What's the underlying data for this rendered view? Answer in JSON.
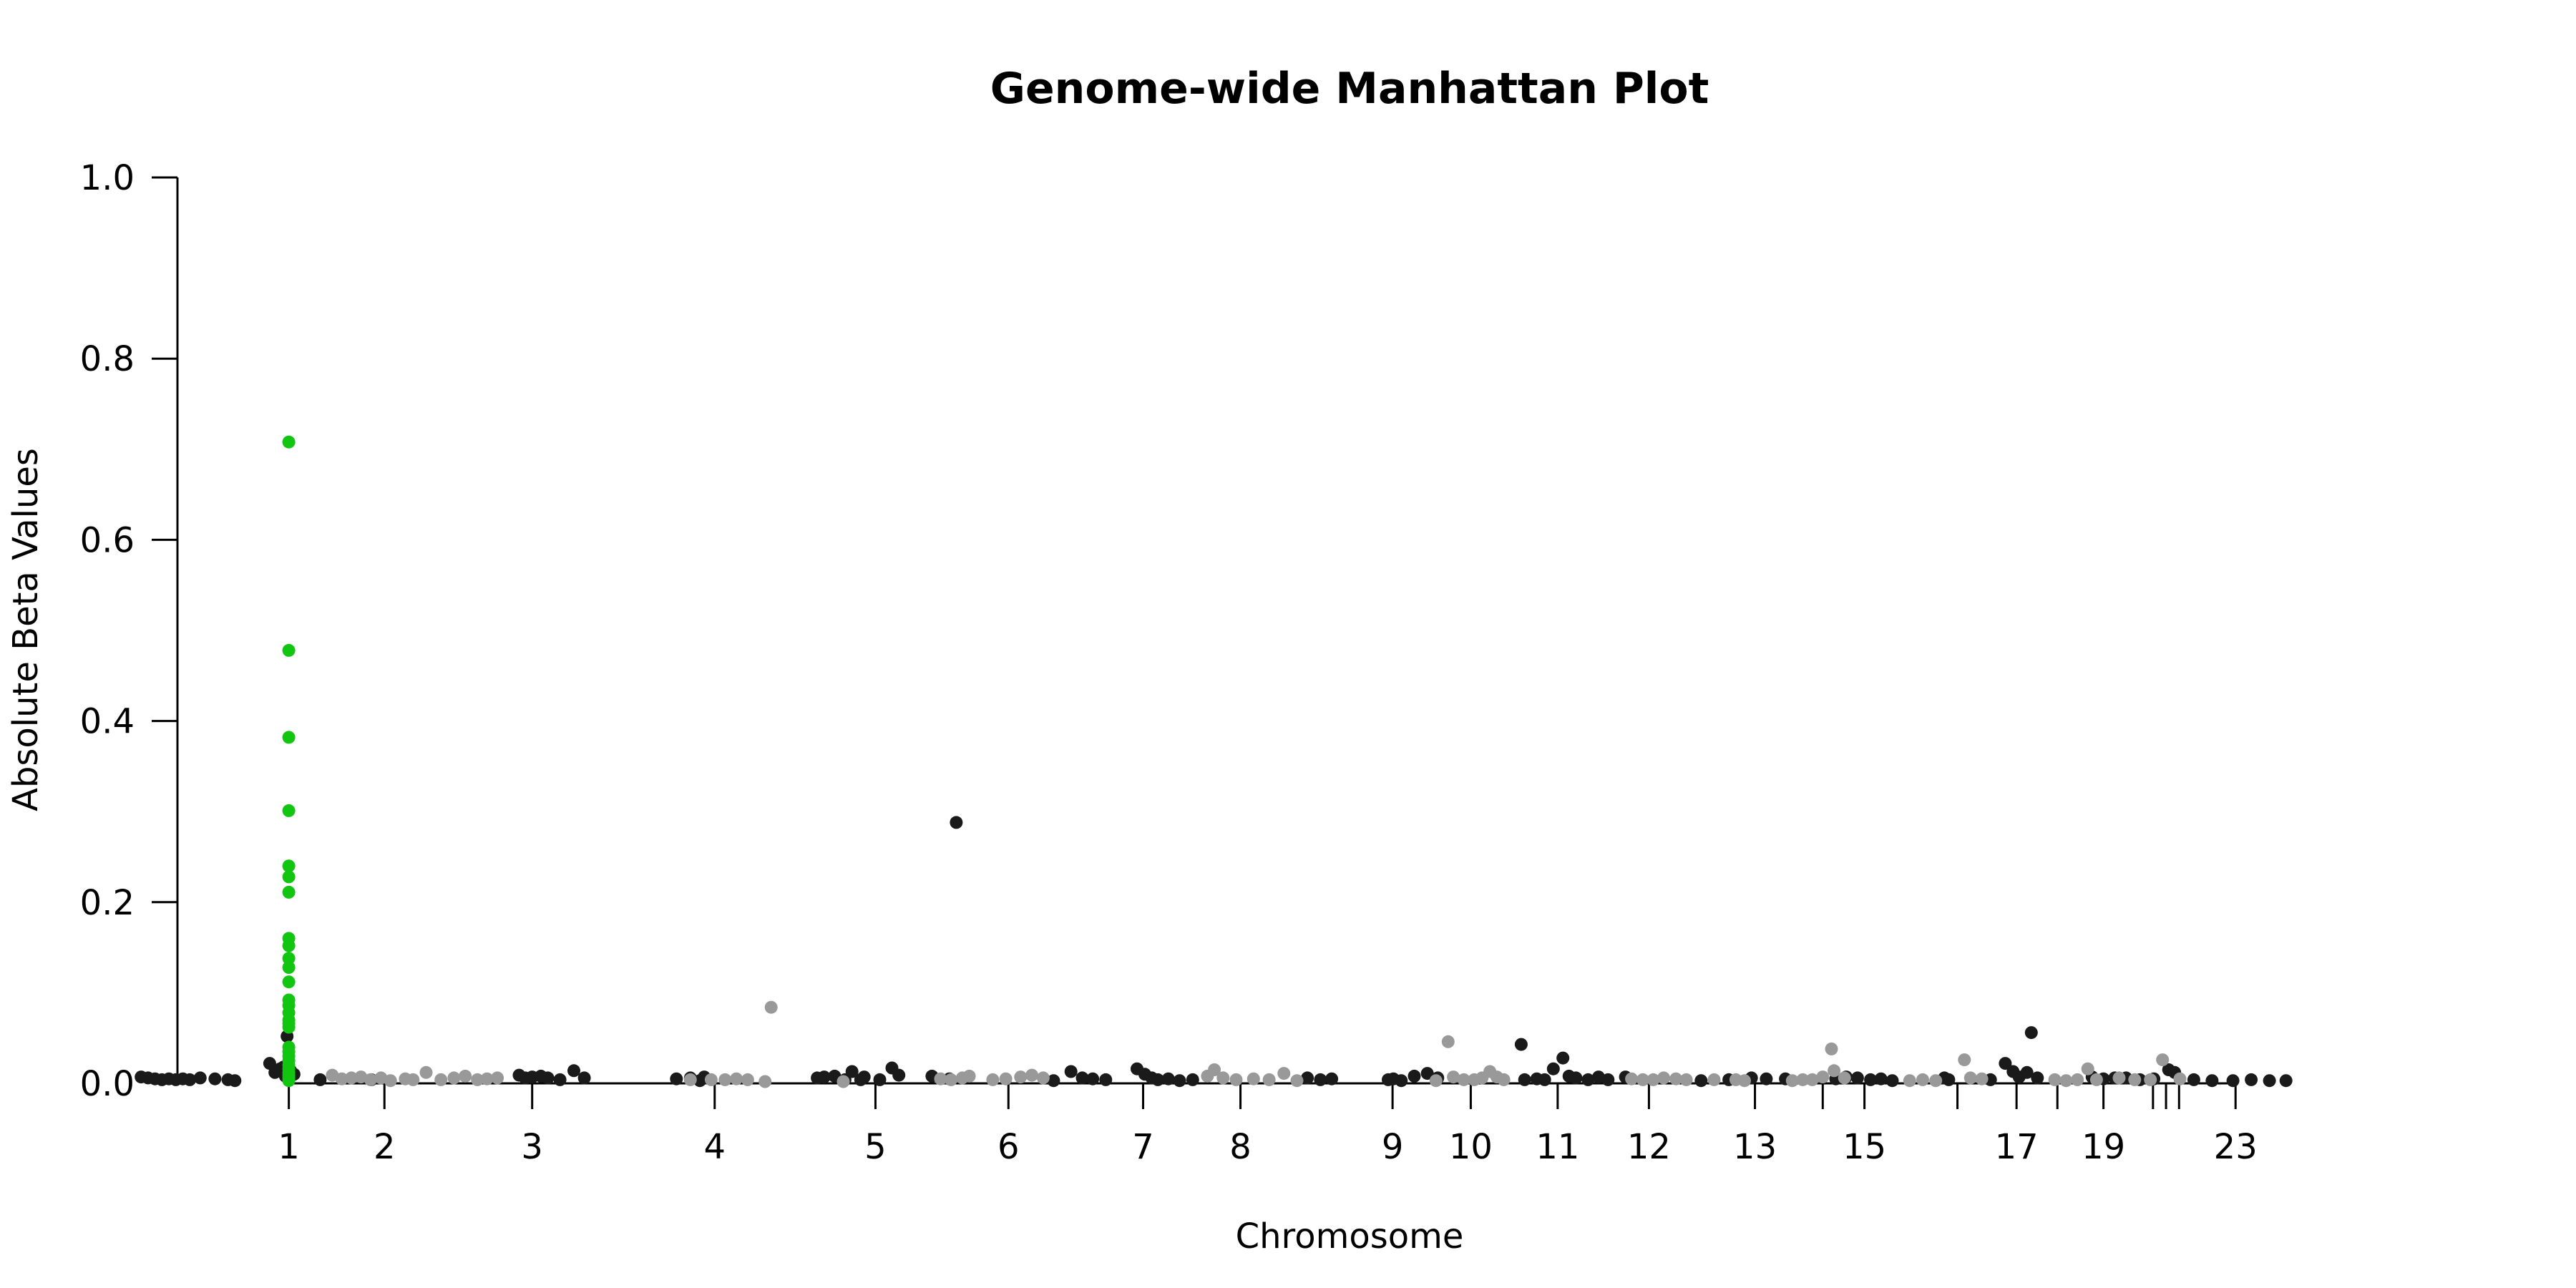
{
  "chart_data": {
    "type": "scatter",
    "title": "Genome-wide Manhattan Plot",
    "xlabel": "Chromosome",
    "ylabel": "Absolute Beta Values",
    "ylim": [
      0,
      1.0
    ],
    "yticks": [
      0.0,
      0.2,
      0.4,
      0.6,
      0.8,
      1.0
    ],
    "ytick_labels": [
      "0.0",
      "0.2",
      "0.4",
      "0.6",
      "0.8",
      "1.0"
    ],
    "xlim": [
      0,
      2750
    ],
    "grid": false,
    "legend": "none",
    "colors": {
      "dark": "#1a1a1a",
      "light": "#999999",
      "highlight": "#11c511"
    },
    "chromosome_ticks": [
      {
        "label": "1",
        "pos": 250
      },
      {
        "label": "2",
        "pos": 360
      },
      {
        "label": "3",
        "pos": 530
      },
      {
        "label": "4",
        "pos": 740
      },
      {
        "label": "5",
        "pos": 925
      },
      {
        "label": "6",
        "pos": 1078
      },
      {
        "label": "7",
        "pos": 1233
      },
      {
        "label": "8",
        "pos": 1345
      },
      {
        "label": "9",
        "pos": 1520
      },
      {
        "label": "10",
        "pos": 1610
      },
      {
        "label": "11",
        "pos": 1710
      },
      {
        "label": "12",
        "pos": 1815
      },
      {
        "label": "13",
        "pos": 1937
      },
      {
        "label": "",
        "pos": 2015
      },
      {
        "label": "15",
        "pos": 2063
      },
      {
        "label": "",
        "pos": 2170
      },
      {
        "label": "17",
        "pos": 2238
      },
      {
        "label": "",
        "pos": 2285
      },
      {
        "label": "19",
        "pos": 2338
      },
      {
        "label": "",
        "pos": 2395
      },
      {
        "label": "",
        "pos": 2410
      },
      {
        "label": "",
        "pos": 2425
      },
      {
        "label": "23",
        "pos": 2490
      }
    ],
    "series": [
      {
        "color": "dark",
        "points": [
          [
            80,
            0.007
          ],
          [
            88,
            0.006
          ],
          [
            96,
            0.005
          ],
          [
            104,
            0.004
          ],
          [
            112,
            0.005
          ],
          [
            120,
            0.004
          ],
          [
            128,
            0.005
          ],
          [
            136,
            0.004
          ],
          [
            148,
            0.006
          ],
          [
            165,
            0.005
          ],
          [
            180,
            0.004
          ],
          [
            188,
            0.003
          ],
          [
            228,
            0.022
          ],
          [
            234,
            0.012
          ],
          [
            240,
            0.016
          ],
          [
            244,
            0.018
          ],
          [
            246,
            0.008
          ],
          [
            248,
            0.052
          ],
          [
            252,
            0.014
          ],
          [
            256,
            0.01
          ],
          [
            286,
            0.004
          ],
          [
            345,
            0.004
          ],
          [
            515,
            0.009
          ],
          [
            522,
            0.006
          ],
          [
            530,
            0.007
          ],
          [
            540,
            0.008
          ],
          [
            548,
            0.006
          ],
          [
            562,
            0.004
          ],
          [
            578,
            0.014
          ],
          [
            590,
            0.006
          ],
          [
            696,
            0.005
          ],
          [
            712,
            0.006
          ],
          [
            723,
            0.003
          ],
          [
            728,
            0.007
          ],
          [
            858,
            0.006
          ],
          [
            866,
            0.007
          ],
          [
            878,
            0.008
          ],
          [
            890,
            0.004
          ],
          [
            898,
            0.013
          ],
          [
            908,
            0.004
          ],
          [
            912,
            0.007
          ],
          [
            930,
            0.004
          ],
          [
            944,
            0.017
          ],
          [
            952,
            0.009
          ],
          [
            990,
            0.008
          ],
          [
            1010,
            0.005
          ],
          [
            1018,
            0.288
          ],
          [
            1130,
            0.003
          ],
          [
            1150,
            0.013
          ],
          [
            1163,
            0.006
          ],
          [
            1175,
            0.005
          ],
          [
            1190,
            0.004
          ],
          [
            1226,
            0.016
          ],
          [
            1235,
            0.01
          ],
          [
            1243,
            0.006
          ],
          [
            1250,
            0.004
          ],
          [
            1262,
            0.005
          ],
          [
            1275,
            0.003
          ],
          [
            1290,
            0.004
          ],
          [
            1422,
            0.006
          ],
          [
            1437,
            0.004
          ],
          [
            1450,
            0.005
          ],
          [
            1515,
            0.004
          ],
          [
            1521,
            0.005
          ],
          [
            1530,
            0.003
          ],
          [
            1545,
            0.008
          ],
          [
            1560,
            0.011
          ],
          [
            1572,
            0.006
          ],
          [
            1668,
            0.043
          ],
          [
            1672,
            0.004
          ],
          [
            1686,
            0.005
          ],
          [
            1695,
            0.004
          ],
          [
            1705,
            0.016
          ],
          [
            1716,
            0.028
          ],
          [
            1723,
            0.008
          ],
          [
            1731,
            0.006
          ],
          [
            1745,
            0.004
          ],
          [
            1757,
            0.007
          ],
          [
            1768,
            0.004
          ],
          [
            1788,
            0.007
          ],
          [
            1875,
            0.003
          ],
          [
            1907,
            0.004
          ],
          [
            1933,
            0.006
          ],
          [
            1950,
            0.005
          ],
          [
            1972,
            0.005
          ],
          [
            2030,
            0.005
          ],
          [
            2042,
            0.007
          ],
          [
            2055,
            0.006
          ],
          [
            2070,
            0.004
          ],
          [
            2082,
            0.005
          ],
          [
            2095,
            0.003
          ],
          [
            2155,
            0.006
          ],
          [
            2160,
            0.004
          ],
          [
            2208,
            0.004
          ],
          [
            2225,
            0.022
          ],
          [
            2234,
            0.013
          ],
          [
            2241,
            0.007
          ],
          [
            2250,
            0.012
          ],
          [
            2255,
            0.056
          ],
          [
            2262,
            0.006
          ],
          [
            2325,
            0.007
          ],
          [
            2338,
            0.005
          ],
          [
            2351,
            0.006
          ],
          [
            2364,
            0.006
          ],
          [
            2380,
            0.004
          ],
          [
            2396,
            0.005
          ],
          [
            2413,
            0.015
          ],
          [
            2420,
            0.012
          ],
          [
            2442,
            0.004
          ],
          [
            2463,
            0.003
          ],
          [
            2487,
            0.003
          ],
          [
            2508,
            0.004
          ],
          [
            2529,
            0.003
          ],
          [
            2548,
            0.003
          ]
        ]
      },
      {
        "color": "light",
        "points": [
          [
            300,
            0.009
          ],
          [
            311,
            0.005
          ],
          [
            322,
            0.006
          ],
          [
            333,
            0.007
          ],
          [
            344,
            0.004
          ],
          [
            356,
            0.006
          ],
          [
            367,
            0.003
          ],
          [
            384,
            0.005
          ],
          [
            393,
            0.004
          ],
          [
            408,
            0.012
          ],
          [
            425,
            0.004
          ],
          [
            440,
            0.006
          ],
          [
            453,
            0.008
          ],
          [
            467,
            0.004
          ],
          [
            478,
            0.005
          ],
          [
            490,
            0.006
          ],
          [
            712,
            0.004
          ],
          [
            736,
            0.004
          ],
          [
            752,
            0.004
          ],
          [
            765,
            0.005
          ],
          [
            778,
            0.004
          ],
          [
            798,
            0.002
          ],
          [
            805,
            0.084
          ],
          [
            888,
            0.002
          ],
          [
            1000,
            0.005
          ],
          [
            1012,
            0.004
          ],
          [
            1025,
            0.006
          ],
          [
            1033,
            0.008
          ],
          [
            1060,
            0.004
          ],
          [
            1075,
            0.005
          ],
          [
            1092,
            0.007
          ],
          [
            1105,
            0.009
          ],
          [
            1118,
            0.006
          ],
          [
            1307,
            0.008
          ],
          [
            1315,
            0.015
          ],
          [
            1325,
            0.006
          ],
          [
            1340,
            0.004
          ],
          [
            1360,
            0.005
          ],
          [
            1378,
            0.004
          ],
          [
            1395,
            0.011
          ],
          [
            1410,
            0.003
          ],
          [
            1570,
            0.003
          ],
          [
            1584,
            0.046
          ],
          [
            1590,
            0.007
          ],
          [
            1602,
            0.004
          ],
          [
            1614,
            0.004
          ],
          [
            1623,
            0.006
          ],
          [
            1632,
            0.013
          ],
          [
            1640,
            0.007
          ],
          [
            1648,
            0.004
          ],
          [
            1795,
            0.005
          ],
          [
            1808,
            0.004
          ],
          [
            1820,
            0.004
          ],
          [
            1832,
            0.006
          ],
          [
            1846,
            0.005
          ],
          [
            1858,
            0.004
          ],
          [
            1890,
            0.004
          ],
          [
            1915,
            0.004
          ],
          [
            1925,
            0.003
          ],
          [
            1980,
            0.003
          ],
          [
            1992,
            0.004
          ],
          [
            2003,
            0.004
          ],
          [
            2015,
            0.007
          ],
          [
            2025,
            0.038
          ],
          [
            2028,
            0.014
          ],
          [
            2040,
            0.006
          ],
          [
            2115,
            0.003
          ],
          [
            2130,
            0.004
          ],
          [
            2145,
            0.003
          ],
          [
            2178,
            0.026
          ],
          [
            2185,
            0.006
          ],
          [
            2198,
            0.005
          ],
          [
            2282,
            0.004
          ],
          [
            2295,
            0.003
          ],
          [
            2308,
            0.004
          ],
          [
            2320,
            0.016
          ],
          [
            2330,
            0.004
          ],
          [
            2356,
            0.006
          ],
          [
            2374,
            0.004
          ],
          [
            2392,
            0.004
          ],
          [
            2406,
            0.026
          ],
          [
            2426,
            0.005
          ]
        ]
      },
      {
        "color": "highlight",
        "points": [
          [
            250,
            0.708
          ],
          [
            250,
            0.478
          ],
          [
            250,
            0.382
          ],
          [
            250,
            0.301
          ],
          [
            250,
            0.24
          ],
          [
            250,
            0.228
          ],
          [
            250,
            0.211
          ],
          [
            250,
            0.16
          ],
          [
            250,
            0.152
          ],
          [
            250,
            0.138
          ],
          [
            250,
            0.128
          ],
          [
            250,
            0.112
          ],
          [
            250,
            0.092
          ],
          [
            250,
            0.086
          ],
          [
            250,
            0.078
          ],
          [
            250,
            0.07
          ],
          [
            250,
            0.066
          ],
          [
            250,
            0.062
          ],
          [
            250,
            0.04
          ],
          [
            250,
            0.035
          ],
          [
            250,
            0.03
          ],
          [
            250,
            0.025
          ],
          [
            250,
            0.02
          ],
          [
            250,
            0.016
          ],
          [
            250,
            0.012
          ],
          [
            250,
            0.009
          ],
          [
            250,
            0.006
          ],
          [
            250,
            0.003
          ]
        ]
      }
    ]
  }
}
